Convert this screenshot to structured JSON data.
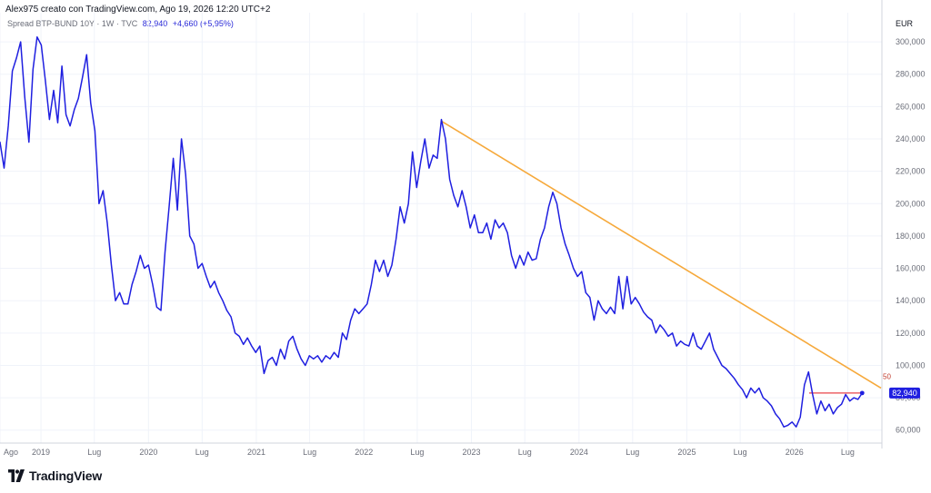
{
  "header": {
    "credit": "Alex975 creato con TradingView.com, Ago 19, 2026 12:20 UTC+2"
  },
  "legend": {
    "symbol": "Spread BTP-BUND 10Y · 1W · TVC",
    "last_value": "82,940",
    "change": "+4,660 (+5,95%)"
  },
  "axis": {
    "currency": "EUR"
  },
  "last_price_label": "82,940",
  "trendline_label": "50",
  "brand": {
    "name": "TradingView"
  },
  "colors": {
    "series": "#1f1fe0",
    "trendline": "#f6a93b",
    "price_line": "#e8434a",
    "grid": "#f0f3fa",
    "axis_text": "#6a6d78",
    "badge": "#1f1fe0"
  },
  "chart_data": {
    "type": "line",
    "title": "",
    "xlabel": "",
    "ylabel": "",
    "ylim": [
      52,
      318
    ],
    "xlim": [
      "2018-08-15",
      "2026-10-25"
    ],
    "grid": true,
    "y_ticks": [
      60,
      80,
      100,
      120,
      140,
      160,
      180,
      200,
      220,
      240,
      260,
      280,
      300
    ],
    "y_tick_labels": [
      "60,000",
      "80,000",
      "100,000",
      "120,000",
      "140,000",
      "160,000",
      "180,000",
      "200,000",
      "220,000",
      "240,000",
      "260,000",
      "280,000",
      "300,000"
    ],
    "x_ticks": [
      {
        "date": "2018-08-15",
        "label": "Ago"
      },
      {
        "date": "2019-01-01",
        "label": "2019"
      },
      {
        "date": "2019-07-01",
        "label": "Lug"
      },
      {
        "date": "2020-01-01",
        "label": "2020"
      },
      {
        "date": "2020-07-01",
        "label": "Lug"
      },
      {
        "date": "2021-01-01",
        "label": "2021"
      },
      {
        "date": "2021-07-01",
        "label": "Lug"
      },
      {
        "date": "2022-01-01",
        "label": "2022"
      },
      {
        "date": "2022-07-01",
        "label": "Lug"
      },
      {
        "date": "2023-01-01",
        "label": "2023"
      },
      {
        "date": "2023-07-01",
        "label": "Lug"
      },
      {
        "date": "2024-01-01",
        "label": "2024"
      },
      {
        "date": "2024-07-01",
        "label": "Lug"
      },
      {
        "date": "2025-01-01",
        "label": "2025"
      },
      {
        "date": "2025-07-01",
        "label": "Lug"
      },
      {
        "date": "2026-01-01",
        "label": "2026"
      },
      {
        "date": "2026-07-01",
        "label": "Lug"
      }
    ],
    "series": [
      {
        "name": "Spread BTP-BUND 10Y",
        "points": [
          [
            "2018-08-15",
            238
          ],
          [
            "2018-08-29",
            222
          ],
          [
            "2018-09-12",
            248
          ],
          [
            "2018-09-26",
            282
          ],
          [
            "2018-10-10",
            290
          ],
          [
            "2018-10-24",
            300
          ],
          [
            "2018-11-07",
            266
          ],
          [
            "2018-11-21",
            238
          ],
          [
            "2018-12-05",
            283
          ],
          [
            "2018-12-19",
            303
          ],
          [
            "2019-01-02",
            298
          ],
          [
            "2019-01-16",
            276
          ],
          [
            "2019-01-30",
            252
          ],
          [
            "2019-02-13",
            270
          ],
          [
            "2019-02-27",
            250
          ],
          [
            "2019-03-13",
            285
          ],
          [
            "2019-03-27",
            255
          ],
          [
            "2019-04-10",
            248
          ],
          [
            "2019-04-24",
            258
          ],
          [
            "2019-05-08",
            265
          ],
          [
            "2019-05-22",
            278
          ],
          [
            "2019-06-05",
            292
          ],
          [
            "2019-06-19",
            262
          ],
          [
            "2019-07-03",
            245
          ],
          [
            "2019-07-17",
            200
          ],
          [
            "2019-07-31",
            208
          ],
          [
            "2019-08-14",
            188
          ],
          [
            "2019-08-28",
            162
          ],
          [
            "2019-09-11",
            140
          ],
          [
            "2019-09-25",
            145
          ],
          [
            "2019-10-09",
            138
          ],
          [
            "2019-10-23",
            138
          ],
          [
            "2019-11-06",
            150
          ],
          [
            "2019-11-20",
            158
          ],
          [
            "2019-12-04",
            168
          ],
          [
            "2019-12-18",
            160
          ],
          [
            "2020-01-01",
            162
          ],
          [
            "2020-01-15",
            150
          ],
          [
            "2020-01-29",
            136
          ],
          [
            "2020-02-12",
            134
          ],
          [
            "2020-02-26",
            170
          ],
          [
            "2020-03-11",
            198
          ],
          [
            "2020-03-25",
            228
          ],
          [
            "2020-04-08",
            196
          ],
          [
            "2020-04-22",
            240
          ],
          [
            "2020-05-06",
            218
          ],
          [
            "2020-05-20",
            180
          ],
          [
            "2020-06-03",
            175
          ],
          [
            "2020-06-17",
            160
          ],
          [
            "2020-07-01",
            163
          ],
          [
            "2020-07-15",
            155
          ],
          [
            "2020-07-29",
            148
          ],
          [
            "2020-08-12",
            152
          ],
          [
            "2020-08-26",
            145
          ],
          [
            "2020-09-09",
            140
          ],
          [
            "2020-09-23",
            134
          ],
          [
            "2020-10-07",
            130
          ],
          [
            "2020-10-21",
            120
          ],
          [
            "2020-11-04",
            118
          ],
          [
            "2020-11-18",
            113
          ],
          [
            "2020-12-02",
            117
          ],
          [
            "2020-12-16",
            112
          ],
          [
            "2020-12-30",
            108
          ],
          [
            "2021-01-13",
            112
          ],
          [
            "2021-01-27",
            95
          ],
          [
            "2021-02-10",
            103
          ],
          [
            "2021-02-24",
            105
          ],
          [
            "2021-03-10",
            100
          ],
          [
            "2021-03-24",
            110
          ],
          [
            "2021-04-07",
            104
          ],
          [
            "2021-04-21",
            115
          ],
          [
            "2021-05-05",
            118
          ],
          [
            "2021-05-19",
            110
          ],
          [
            "2021-06-02",
            104
          ],
          [
            "2021-06-16",
            100
          ],
          [
            "2021-06-30",
            106
          ],
          [
            "2021-07-14",
            104
          ],
          [
            "2021-07-28",
            106
          ],
          [
            "2021-08-11",
            102
          ],
          [
            "2021-08-25",
            106
          ],
          [
            "2021-09-08",
            104
          ],
          [
            "2021-09-22",
            108
          ],
          [
            "2021-10-06",
            105
          ],
          [
            "2021-10-20",
            120
          ],
          [
            "2021-11-03",
            116
          ],
          [
            "2021-11-17",
            128
          ],
          [
            "2021-12-01",
            135
          ],
          [
            "2021-12-15",
            132
          ],
          [
            "2021-12-29",
            135
          ],
          [
            "2022-01-12",
            138
          ],
          [
            "2022-01-26",
            150
          ],
          [
            "2022-02-09",
            165
          ],
          [
            "2022-02-23",
            158
          ],
          [
            "2022-03-09",
            165
          ],
          [
            "2022-03-23",
            155
          ],
          [
            "2022-04-06",
            162
          ],
          [
            "2022-04-20",
            178
          ],
          [
            "2022-05-04",
            198
          ],
          [
            "2022-05-18",
            188
          ],
          [
            "2022-06-01",
            200
          ],
          [
            "2022-06-15",
            232
          ],
          [
            "2022-06-29",
            210
          ],
          [
            "2022-07-13",
            226
          ],
          [
            "2022-07-27",
            240
          ],
          [
            "2022-08-10",
            222
          ],
          [
            "2022-08-24",
            230
          ],
          [
            "2022-09-07",
            228
          ],
          [
            "2022-09-21",
            252
          ],
          [
            "2022-10-05",
            240
          ],
          [
            "2022-10-19",
            215
          ],
          [
            "2022-11-02",
            205
          ],
          [
            "2022-11-16",
            198
          ],
          [
            "2022-11-30",
            208
          ],
          [
            "2022-12-14",
            198
          ],
          [
            "2022-12-28",
            185
          ],
          [
            "2023-01-11",
            193
          ],
          [
            "2023-01-25",
            182
          ],
          [
            "2023-02-08",
            182
          ],
          [
            "2023-02-22",
            188
          ],
          [
            "2023-03-08",
            178
          ],
          [
            "2023-03-22",
            190
          ],
          [
            "2023-04-05",
            185
          ],
          [
            "2023-04-19",
            188
          ],
          [
            "2023-05-03",
            182
          ],
          [
            "2023-05-17",
            168
          ],
          [
            "2023-05-31",
            160
          ],
          [
            "2023-06-14",
            168
          ],
          [
            "2023-06-28",
            162
          ],
          [
            "2023-07-12",
            170
          ],
          [
            "2023-07-26",
            165
          ],
          [
            "2023-08-09",
            166
          ],
          [
            "2023-08-23",
            178
          ],
          [
            "2023-09-06",
            185
          ],
          [
            "2023-09-20",
            198
          ],
          [
            "2023-10-04",
            207
          ],
          [
            "2023-10-18",
            200
          ],
          [
            "2023-11-01",
            185
          ],
          [
            "2023-11-15",
            175
          ],
          [
            "2023-11-29",
            168
          ],
          [
            "2023-12-13",
            160
          ],
          [
            "2023-12-27",
            155
          ],
          [
            "2024-01-10",
            158
          ],
          [
            "2024-01-24",
            145
          ],
          [
            "2024-02-07",
            142
          ],
          [
            "2024-02-21",
            128
          ],
          [
            "2024-03-06",
            140
          ],
          [
            "2024-03-20",
            135
          ],
          [
            "2024-04-03",
            132
          ],
          [
            "2024-04-17",
            136
          ],
          [
            "2024-05-01",
            132
          ],
          [
            "2024-05-15",
            155
          ],
          [
            "2024-05-29",
            135
          ],
          [
            "2024-06-12",
            155
          ],
          [
            "2024-06-26",
            138
          ],
          [
            "2024-07-10",
            142
          ],
          [
            "2024-07-24",
            138
          ],
          [
            "2024-08-07",
            133
          ],
          [
            "2024-08-21",
            130
          ],
          [
            "2024-09-04",
            128
          ],
          [
            "2024-09-18",
            120
          ],
          [
            "2024-10-02",
            125
          ],
          [
            "2024-10-16",
            122
          ],
          [
            "2024-10-30",
            118
          ],
          [
            "2024-11-13",
            120
          ],
          [
            "2024-11-27",
            112
          ],
          [
            "2024-12-11",
            115
          ],
          [
            "2024-12-25",
            113
          ],
          [
            "2025-01-08",
            112
          ],
          [
            "2025-01-22",
            120
          ],
          [
            "2025-02-05",
            112
          ],
          [
            "2025-02-19",
            110
          ],
          [
            "2025-03-05",
            115
          ],
          [
            "2025-03-19",
            120
          ],
          [
            "2025-04-02",
            110
          ],
          [
            "2025-04-16",
            105
          ],
          [
            "2025-04-30",
            100
          ],
          [
            "2025-05-14",
            98
          ],
          [
            "2025-05-28",
            95
          ],
          [
            "2025-06-11",
            92
          ],
          [
            "2025-06-25",
            88
          ],
          [
            "2025-07-09",
            85
          ],
          [
            "2025-07-23",
            80
          ],
          [
            "2025-08-06",
            86
          ],
          [
            "2025-08-20",
            83
          ],
          [
            "2025-09-03",
            86
          ],
          [
            "2025-09-17",
            80
          ],
          [
            "2025-10-01",
            78
          ],
          [
            "2025-10-15",
            75
          ],
          [
            "2025-10-29",
            70
          ],
          [
            "2025-11-12",
            67
          ],
          [
            "2025-11-26",
            62
          ],
          [
            "2025-12-10",
            63
          ],
          [
            "2025-12-24",
            65
          ],
          [
            "2026-01-07",
            62
          ],
          [
            "2026-01-21",
            68
          ],
          [
            "2026-02-04",
            88
          ],
          [
            "2026-02-18",
            96
          ],
          [
            "2026-03-04",
            82
          ],
          [
            "2026-03-18",
            70
          ],
          [
            "2026-04-01",
            78
          ],
          [
            "2026-04-15",
            72
          ],
          [
            "2026-04-29",
            76
          ],
          [
            "2026-05-13",
            70
          ],
          [
            "2026-05-27",
            74
          ],
          [
            "2026-06-10",
            76
          ],
          [
            "2026-06-24",
            82
          ],
          [
            "2026-07-08",
            78
          ],
          [
            "2026-07-22",
            80
          ],
          [
            "2026-08-05",
            79
          ],
          [
            "2026-08-19",
            82.94
          ]
        ]
      }
    ],
    "trendline": {
      "start": [
        "2022-09-21",
        251
      ],
      "end": [
        "2026-10-22",
        86
      ]
    },
    "price_line": {
      "value": 82.94,
      "from": "2026-02-20",
      "to": "2026-08-19"
    }
  }
}
